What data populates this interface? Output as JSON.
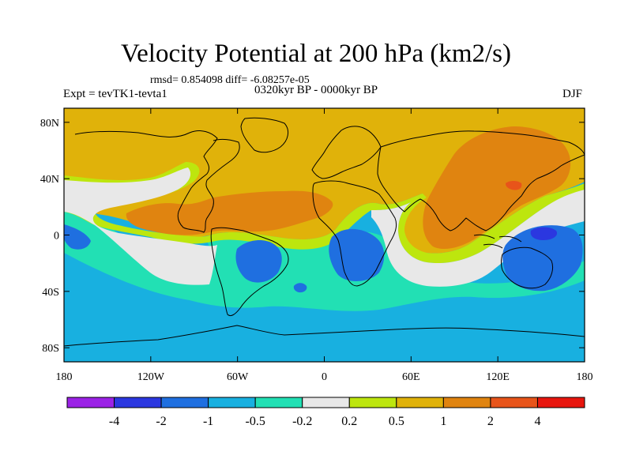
{
  "title": "Velocity Potential at 200 hPa (km2/s)",
  "stats": "rmsd= 0.854098 diff= -6.08257e-05",
  "experiment": "Expt = tevTK1-tevta1",
  "period": "0320kyr BP - 0000kyr BP",
  "season": "DJF",
  "map": {
    "lon_range": [
      -180,
      180
    ],
    "lat_range": [
      -90,
      90
    ],
    "y_ticks": [
      {
        "lat": 80,
        "label": "80N"
      },
      {
        "lat": 40,
        "label": "40N"
      },
      {
        "lat": 0,
        "label": "0"
      },
      {
        "lat": -40,
        "label": "40S"
      },
      {
        "lat": -80,
        "label": "80S"
      }
    ],
    "x_ticks": [
      {
        "lon": -180,
        "label": "180"
      },
      {
        "lon": -120,
        "label": "120W"
      },
      {
        "lon": -60,
        "label": "60W"
      },
      {
        "lon": 0,
        "label": "0"
      },
      {
        "lon": 60,
        "label": "60E"
      },
      {
        "lon": 120,
        "label": "120E"
      },
      {
        "lon": 180,
        "label": "180"
      }
    ]
  },
  "colorbar": {
    "colors": [
      "#9b22e6",
      "#2b37e0",
      "#1f6fe0",
      "#18b0e0",
      "#22e0b4",
      "#e8e8e8",
      "#bde60e",
      "#e0b20a",
      "#e08410",
      "#e8541a",
      "#e8160e"
    ],
    "labels": [
      "-4",
      "-2",
      "-1",
      "-0.5",
      "-0.2",
      "0.2",
      "0.5",
      "1",
      "2",
      "4"
    ]
  }
}
